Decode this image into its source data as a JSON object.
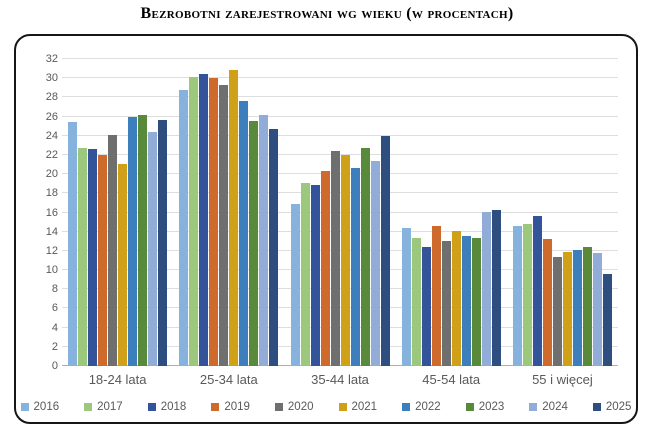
{
  "page": {
    "title": "Bezrobotni zarejestrowani wg wieku (w procentach)"
  },
  "chart_data": {
    "type": "bar",
    "title": "Bezrobotni zarejestrowani wg wieku (w procentach)",
    "xlabel": "",
    "ylabel": "",
    "ylim": [
      0,
      32
    ],
    "ytick_step": 2,
    "grid": true,
    "legend_position": "bottom",
    "categories": [
      "18-24 lata",
      "25-34 lata",
      "35-44 lata",
      "45-54 lata",
      "55 i więcej"
    ],
    "series": [
      {
        "name": "2016",
        "color": "#85B3DE",
        "values": [
          25.4,
          28.8,
          16.9,
          14.4,
          14.6
        ]
      },
      {
        "name": "2017",
        "color": "#9CC87E",
        "values": [
          22.7,
          30.1,
          19.1,
          13.3,
          14.8
        ]
      },
      {
        "name": "2018",
        "color": "#33549B",
        "values": [
          22.6,
          30.4,
          18.9,
          12.4,
          15.6
        ]
      },
      {
        "name": "2019",
        "color": "#CD6A2C",
        "values": [
          22.0,
          30.0,
          20.3,
          14.6,
          13.2
        ]
      },
      {
        "name": "2020",
        "color": "#6F6F6F",
        "values": [
          24.1,
          29.3,
          22.4,
          13.0,
          11.4
        ]
      },
      {
        "name": "2021",
        "color": "#D0A018",
        "values": [
          21.1,
          30.9,
          22.0,
          14.1,
          11.9
        ]
      },
      {
        "name": "2022",
        "color": "#3D7EBD",
        "values": [
          26.0,
          27.6,
          20.6,
          13.6,
          12.1
        ]
      },
      {
        "name": "2023",
        "color": "#598A3C",
        "values": [
          26.2,
          25.5,
          22.7,
          13.3,
          12.4
        ]
      },
      {
        "name": "2024",
        "color": "#92ACD8",
        "values": [
          24.4,
          26.2,
          21.4,
          16.1,
          11.8
        ]
      },
      {
        "name": "2025",
        "color": "#2E4E80",
        "values": [
          25.6,
          24.7,
          24.0,
          16.3,
          9.6
        ]
      }
    ]
  },
  "colors": {
    "grid": "#DEDEDE",
    "axis_line": "#B0B0B0",
    "muted_text": "#595959",
    "border": "#161616"
  }
}
